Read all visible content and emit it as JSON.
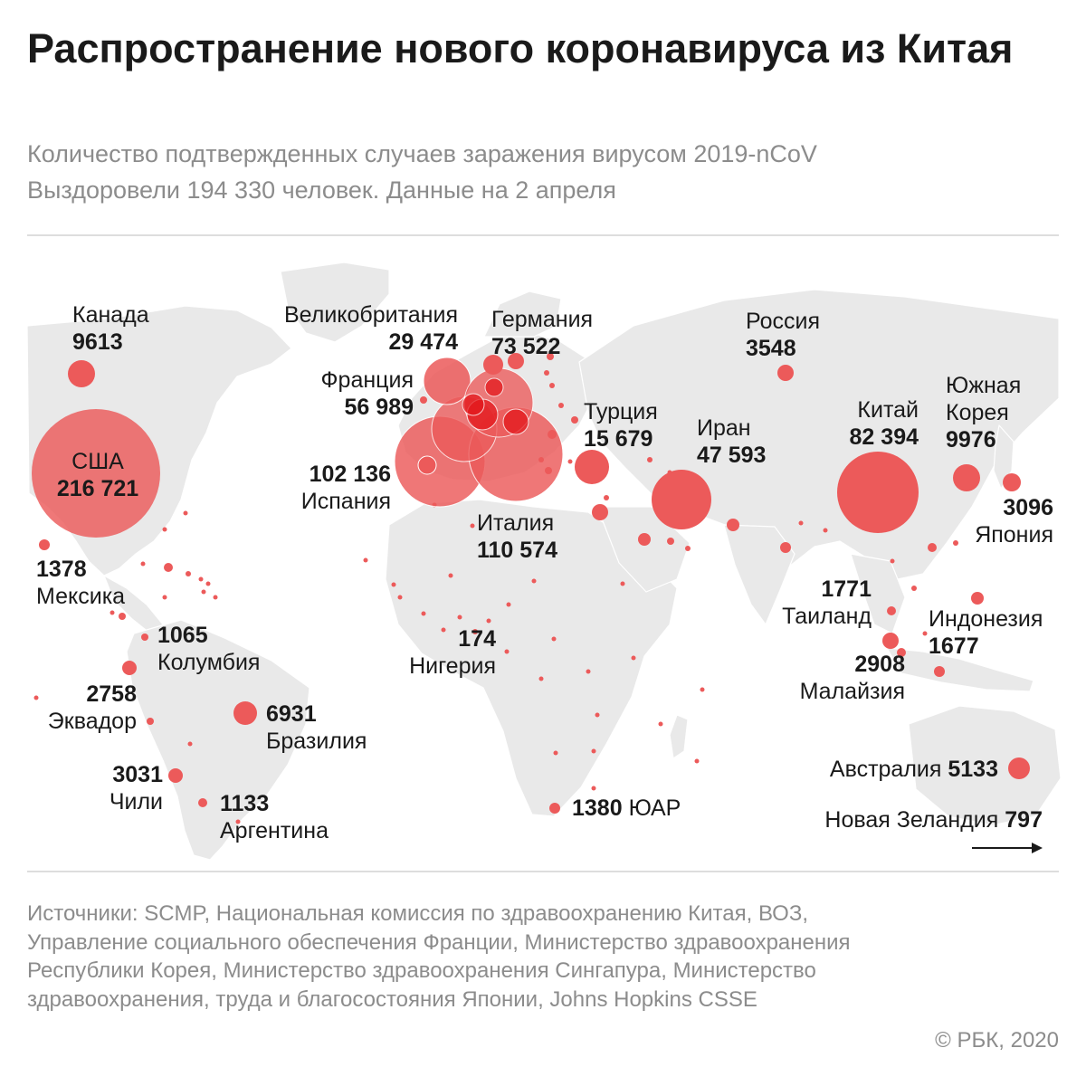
{
  "header": {
    "title": "Распространение нового коронавируса из Китая",
    "subtitle_line1": "Количество подтвержденных случаев заражения вирусом 2019-nCoV",
    "subtitle_line2": "Выздоровели 194 330 человек. Данные на 2 апреля"
  },
  "colors": {
    "land": "#e9e9e9",
    "bubble": "#ec5a5a",
    "bubble_bright": "#e3181c",
    "text": "#1a1a1a",
    "muted": "#8c8c8c"
  },
  "map": {
    "countries": {
      "canada": {
        "name": "Канада",
        "cases": "9613"
      },
      "usa": {
        "name": "США",
        "cases": "216 721"
      },
      "uk": {
        "name": "Великобритания",
        "cases": "29 474"
      },
      "germany": {
        "name": "Германия",
        "cases": "73 522"
      },
      "france": {
        "name": "Франция",
        "cases": "56 989"
      },
      "spain": {
        "name": "Испания",
        "cases": "102 136"
      },
      "italy": {
        "name": "Италия",
        "cases": "110 574"
      },
      "turkey": {
        "name": "Турция",
        "cases": "15 679"
      },
      "iran": {
        "name": "Иран",
        "cases": "47 593"
      },
      "russia": {
        "name": "Россия",
        "cases": "3548"
      },
      "china": {
        "name": "Китай",
        "cases": "82 394"
      },
      "south_korea": {
        "name_line1": "Южная",
        "name_line2": "Корея",
        "cases": "9976"
      },
      "japan": {
        "name": "Япония",
        "cases": "3096"
      },
      "mexico": {
        "name": "Мексика",
        "cases": "1378"
      },
      "colombia": {
        "name": "Колумбия",
        "cases": "1065"
      },
      "ecuador": {
        "name": "Эквадор",
        "cases": "2758"
      },
      "brazil": {
        "name": "Бразилия",
        "cases": "6931"
      },
      "chile": {
        "name": "Чили",
        "cases": "3031"
      },
      "argentina": {
        "name": "Аргентина",
        "cases": "1133"
      },
      "nigeria": {
        "name": "Нигерия",
        "cases": "174"
      },
      "south_africa": {
        "name": "ЮАР",
        "cases": "1380"
      },
      "thailand": {
        "name": "Таиланд",
        "cases": "1771"
      },
      "malaysia": {
        "name": "Малайзия",
        "cases": "2908"
      },
      "indonesia": {
        "name": "Индонезия",
        "cases": "1677"
      },
      "australia": {
        "name": "Австралия",
        "cases": "5133"
      },
      "new_zealand": {
        "name": "Новая Зеландия",
        "cases": "797"
      }
    }
  },
  "footer": {
    "sources": "Источники: SCMP, Национальная комиссия по здравоохранению Китая, ВОЗ, Управление социального обеспечения Франции, Министерство здравоохранения Республики Корея, Министерство здравоохранения Сингапура, Министерство здравоохранения, труда и благосостояния Японии, Johns Hopkins CSSE",
    "copyright": "© РБК, 2020"
  }
}
